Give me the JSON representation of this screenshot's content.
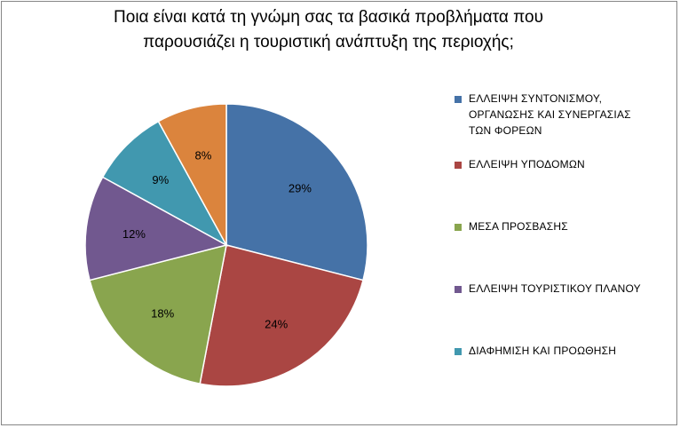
{
  "chart_data": {
    "type": "pie",
    "title": "Ποια είναι κατά τη γνώμη σας τα βασικά προβλήματα που παρουσιάζει η τουριστική ανάπτυξη της περιοχής;",
    "title_lines": [
      "Ποια είναι κατά τη γνώμη σας τα βασικά προβλήματα που",
      "παρουσιάζει η τουριστική ανάπτυξη της περιοχής;"
    ],
    "legend_position": "right",
    "slices": [
      {
        "label": "ΕΛΛΕΙΨΗ ΣΥΝΤΟΝΙΣΜΟΥ, ΟΡΓΑΝΩΣΗΣ ΚΑΙ ΣΥΝΕΡΓΑΣΙΑΣ ΤΩΝ ΦΟΡΕΩΝ",
        "legend_lines": [
          "ΕΛΛΕΙΨΗ ΣΥΝΤΟΝΙΣΜΟΥ,",
          "ΟΡΓΑΝΩΣΗΣ ΚΑΙ ΣΥΝΕΡΓΑΣΙΑΣ",
          "ΤΩΝ ΦΟΡΕΩΝ"
        ],
        "value": 29,
        "data_label": "29%",
        "color": "#4572A7"
      },
      {
        "label": "ΕΛΛΕΙΨΗ ΥΠΟΔΟΜΩΝ",
        "legend_lines": [
          "ΕΛΛΕΙΨΗ ΥΠΟΔΟΜΩΝ"
        ],
        "value": 24,
        "data_label": "24%",
        "color": "#AA4643"
      },
      {
        "label": "ΜΕΣΑ ΠΡΟΣΒΑΣΗΣ",
        "legend_lines": [
          "ΜΕΣΑ ΠΡΟΣΒΑΣΗΣ"
        ],
        "value": 18,
        "data_label": "18%",
        "color": "#89A54E"
      },
      {
        "label": "ΕΛΛΕΙΨΗ ΤΟΥΡΙΣΤΙΚΟΥ ΠΛΑΝΟΥ",
        "legend_lines": [
          "ΕΛΛΕΙΨΗ ΤΟΥΡΙΣΤΙΚΟΥ ΠΛΑΝΟΥ"
        ],
        "value": 12,
        "data_label": "12%",
        "color": "#71588F"
      },
      {
        "label": "ΔΙΑΦΗΜΙΣΗ ΚΑΙ ΠΡΟΩΘΗΣΗ",
        "legend_lines": [
          "ΔΙΑΦΗΜΙΣΗ ΚΑΙ ΠΡΟΩΘΗΣΗ"
        ],
        "value": 9,
        "data_label": "9%",
        "color": "#4198AF"
      },
      {
        "label": "",
        "legend_lines": [],
        "value": 8,
        "data_label": "8%",
        "color": "#DB843D"
      }
    ]
  }
}
